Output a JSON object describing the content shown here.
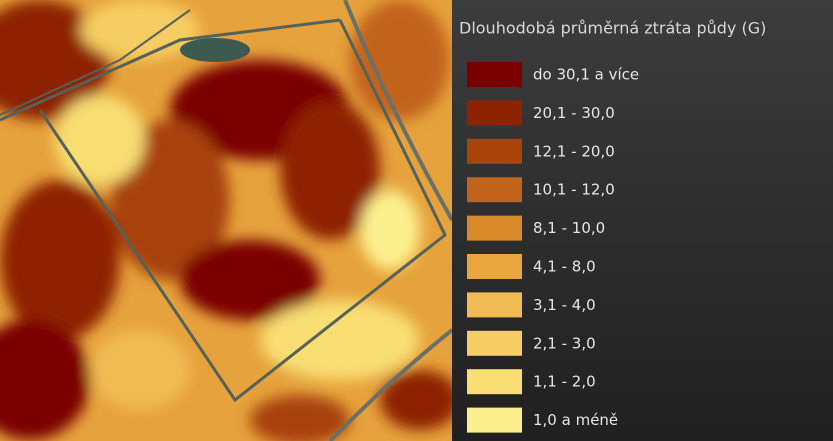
{
  "legend": {
    "title": "Dlouhodobá průměrná ztráta půdy (G)",
    "items": [
      {
        "label": "do 30,1 a více",
        "color": "#7a0000"
      },
      {
        "label": "20,1 - 30,0",
        "color": "#8e2300"
      },
      {
        "label": "12,1 - 20,0",
        "color": "#a8430c"
      },
      {
        "label": "10,1 - 12,0",
        "color": "#c2631b"
      },
      {
        "label": "8,1 - 10,0",
        "color": "#d98a2a"
      },
      {
        "label": "4,1 - 8,0",
        "color": "#e9a63f"
      },
      {
        "label": "3,1 - 4,0",
        "color": "#f1bb53"
      },
      {
        "label": "2,1 - 3,0",
        "color": "#f6cd62"
      },
      {
        "label": "1,1 - 2,0",
        "color": "#f8de73"
      },
      {
        "label": "1,0 a méně",
        "color": "#fcf08e"
      }
    ]
  }
}
